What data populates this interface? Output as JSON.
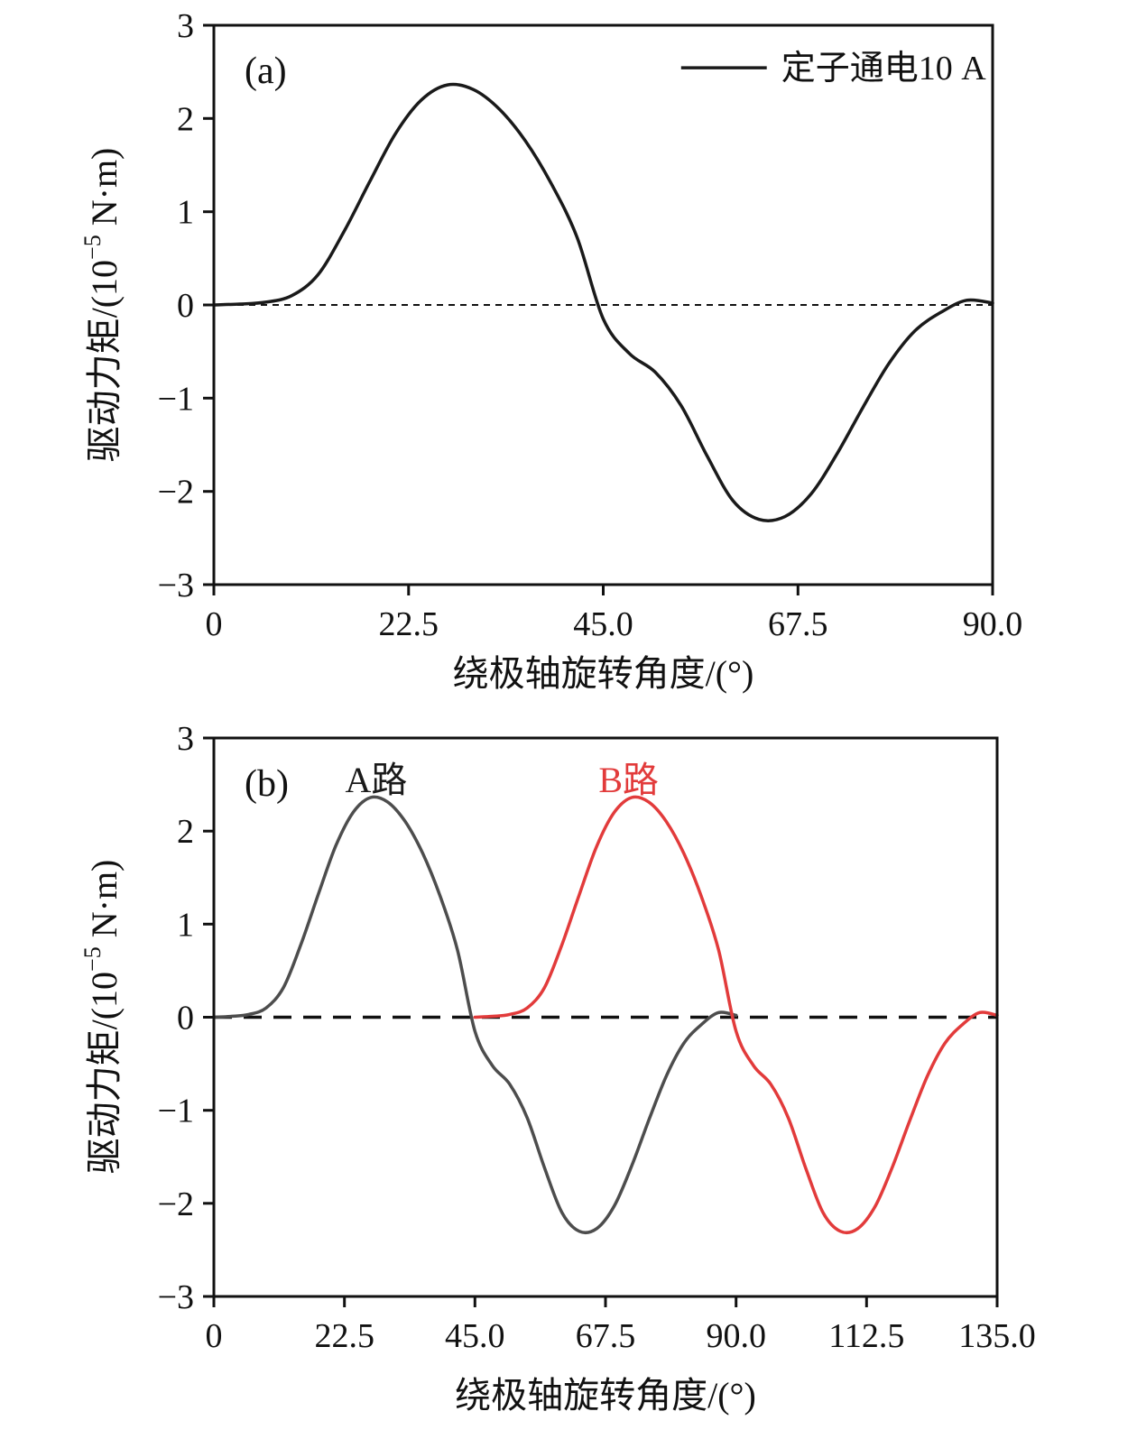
{
  "figure": {
    "background": "#ffffff",
    "panels": [
      {
        "tag": "(a)",
        "ylabel_prefix": "驱动力矩/(10",
        "ylabel_sup": "−5",
        "ylabel_suffix": " N·m)",
        "xlabel": "绕极轴旋转角度/(°)"
      },
      {
        "tag": "(b)",
        "ylabel_prefix": "驱动力矩/(10",
        "ylabel_sup": "−5",
        "ylabel_suffix": " N·m)",
        "xlabel": "绕极轴旋转角度/(°)"
      }
    ]
  },
  "chart_data": [
    {
      "type": "line",
      "panel": "a",
      "title": "",
      "xlabel": "绕极轴旋转角度/(°)",
      "ylabel": "驱动力矩/(10⁻⁵ N·m)",
      "xlim": [
        0,
        90
      ],
      "ylim": [
        -3,
        3
      ],
      "xticks": [
        0,
        22.5,
        45,
        67.5,
        90
      ],
      "xtick_labels": [
        "0",
        "22.5",
        "45.0",
        "67.5",
        "90.0"
      ],
      "yticks": [
        -3,
        -2,
        -1,
        0,
        1,
        2,
        3
      ],
      "ytick_labels": [
        "−3",
        "−2",
        "−1",
        "0",
        "1",
        "2",
        "3"
      ],
      "grid": false,
      "zero_line_dashed": true,
      "legend": {
        "position": "top-right",
        "entries": [
          {
            "label": "定子通电10 A",
            "color": "#1a1a1a"
          }
        ]
      },
      "series": [
        {
          "name": "定子通电10 A",
          "color": "#1a1a1a",
          "x": [
            0,
            3,
            6,
            9,
            12,
            15,
            18,
            21,
            24,
            27,
            30,
            33,
            36,
            39,
            42,
            45,
            48,
            51,
            54,
            57,
            60,
            63,
            66,
            69,
            72,
            75,
            78,
            81,
            84,
            87,
            90
          ],
          "y": [
            0.0,
            0.01,
            0.03,
            0.1,
            0.32,
            0.78,
            1.32,
            1.84,
            2.2,
            2.36,
            2.31,
            2.1,
            1.76,
            1.3,
            0.72,
            -0.15,
            -0.52,
            -0.72,
            -1.08,
            -1.62,
            -2.1,
            -2.3,
            -2.27,
            -2.03,
            -1.6,
            -1.1,
            -0.63,
            -0.28,
            -0.08,
            0.05,
            0.02
          ]
        }
      ]
    },
    {
      "type": "line",
      "panel": "b",
      "title": "",
      "xlabel": "绕极轴旋转角度/(°)",
      "ylabel": "驱动力矩/(10⁻⁵ N·m)",
      "xlim": [
        0,
        135
      ],
      "ylim": [
        -3,
        3
      ],
      "xticks": [
        0,
        22.5,
        45,
        67.5,
        90,
        112.5,
        135
      ],
      "xtick_labels": [
        "0",
        "22.5",
        "45.0",
        "67.5",
        "90.0",
        "112.5",
        "135.0"
      ],
      "yticks": [
        -3,
        -2,
        -1,
        0,
        1,
        2,
        3
      ],
      "ytick_labels": [
        "−3",
        "−2",
        "−1",
        "0",
        "1",
        "2",
        "3"
      ],
      "grid": false,
      "zero_line_dashed": true,
      "annotations": [
        {
          "text": "A路",
          "x": 28,
          "y": 2.42,
          "color": "#1a1a1a"
        },
        {
          "text": "B路",
          "x": 71.5,
          "y": 2.42,
          "color": "#e23b3b"
        }
      ],
      "series": [
        {
          "name": "A路",
          "color": "#4d4d4d",
          "x": [
            0,
            3,
            6,
            9,
            12,
            15,
            18,
            21,
            24,
            27,
            30,
            33,
            36,
            39,
            42,
            45,
            48,
            51,
            54,
            57,
            60,
            63,
            66,
            69,
            72,
            75,
            78,
            81,
            84,
            87,
            90
          ],
          "y": [
            0.0,
            0.01,
            0.03,
            0.1,
            0.32,
            0.78,
            1.32,
            1.84,
            2.2,
            2.36,
            2.31,
            2.1,
            1.76,
            1.3,
            0.72,
            -0.15,
            -0.52,
            -0.72,
            -1.08,
            -1.62,
            -2.1,
            -2.3,
            -2.27,
            -2.03,
            -1.6,
            -1.1,
            -0.63,
            -0.28,
            -0.08,
            0.05,
            0.02
          ]
        },
        {
          "name": "B路",
          "color": "#e23b3b",
          "x": [
            45,
            48,
            51,
            54,
            57,
            60,
            63,
            66,
            69,
            72,
            75,
            78,
            81,
            84,
            87,
            90,
            93,
            96,
            99,
            102,
            105,
            108,
            111,
            114,
            117,
            120,
            123,
            126,
            129,
            132,
            135
          ],
          "y": [
            0.0,
            0.01,
            0.03,
            0.1,
            0.32,
            0.78,
            1.32,
            1.84,
            2.2,
            2.36,
            2.31,
            2.1,
            1.76,
            1.3,
            0.72,
            -0.15,
            -0.52,
            -0.72,
            -1.08,
            -1.62,
            -2.1,
            -2.3,
            -2.27,
            -2.03,
            -1.6,
            -1.1,
            -0.63,
            -0.28,
            -0.08,
            0.05,
            0.02
          ]
        }
      ]
    }
  ]
}
